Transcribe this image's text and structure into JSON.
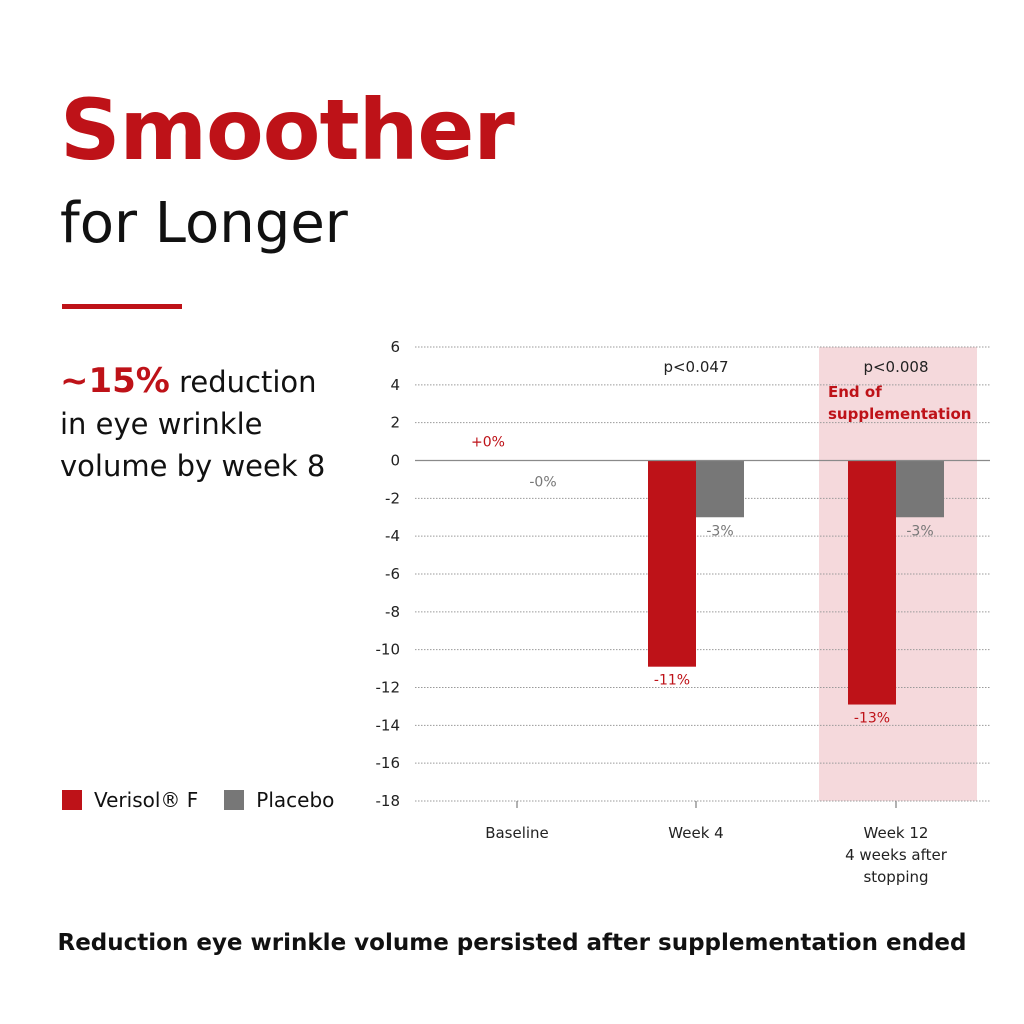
{
  "header": {
    "title": "Smoother",
    "subtitle": "for Longer"
  },
  "stat": {
    "highlight": "~15%",
    "text_line1": "reduction",
    "text_line2": "in eye wrinkle",
    "text_line3": "volume by week 8"
  },
  "footer": {
    "text": "Reduction eye wrinkle volume persisted after supplementation ended"
  },
  "colors": {
    "accent": "#BE1218",
    "placebo": "#777777",
    "highlight_band": "#F5D9DC",
    "text": "#111111"
  },
  "chart_data": {
    "type": "bar",
    "categories": [
      {
        "lines": [
          "Baseline"
        ]
      },
      {
        "lines": [
          "Week 4"
        ]
      },
      {
        "lines": [
          "Week 12",
          "4 weeks after",
          "stopping"
        ]
      }
    ],
    "series": [
      {
        "name": "Verisol® F",
        "values": [
          0,
          -10.9,
          -12.9
        ],
        "labels": [
          "+0%",
          "-11%",
          "-13%"
        ],
        "color": "#BE1218"
      },
      {
        "name": "Placebo",
        "values": [
          0,
          -3,
          -3
        ],
        "labels": [
          "-0%",
          "-3%",
          "-3%"
        ],
        "color": "#777777"
      }
    ],
    "annotations": [
      {
        "category": 1,
        "text": "p<0.047"
      },
      {
        "category": 2,
        "text": "p<0.008"
      }
    ],
    "highlight": {
      "category": 2,
      "text_lines": [
        "End of",
        "supplementation"
      ]
    },
    "yticks": [
      6,
      4,
      2,
      0,
      -2,
      -4,
      -6,
      -8,
      -10,
      -12,
      -14,
      -16,
      -18
    ],
    "ylim": [
      -18,
      6
    ],
    "grid": true,
    "legend_position": "bottom-left"
  }
}
